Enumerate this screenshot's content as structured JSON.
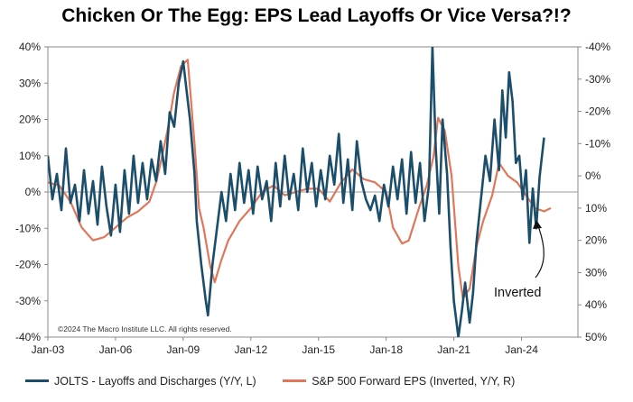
{
  "title": "Chicken Or The Egg: EPS Lead Layoffs Or Vice Versa?!?",
  "copyright": "©2024 The Macro Institute LLC. All rights reserved.",
  "annotation": "Inverted",
  "colors": {
    "series1": "#1b4e6b",
    "series2": "#e0775a",
    "grid": "#9a9a9a",
    "axis": "#888888"
  },
  "chart_data": {
    "type": "line",
    "x_tick_labels": [
      "Jan-03",
      "Jan-06",
      "Jan-09",
      "Jan-12",
      "Jan-15",
      "Jan-18",
      "Jan-21",
      "Jan-24"
    ],
    "xlim": [
      2003.0,
      2026.5
    ],
    "y_left": {
      "ticks": [
        "40%",
        "30%",
        "20%",
        "10%",
        "0%",
        "-10%",
        "-20%",
        "-30%",
        "-40%"
      ],
      "ylim": [
        -40,
        40
      ]
    },
    "y_right": {
      "ticks": [
        "-40%",
        "-30%",
        "-20%",
        "-10%",
        "0%",
        "10%",
        "20%",
        "30%",
        "40%",
        "50%"
      ],
      "ylim": [
        50,
        -40
      ],
      "inverted": true
    },
    "series": [
      {
        "name": "JOLTS - Layoffs and Discharges (Y/Y, L)",
        "axis": "left",
        "points": [
          [
            2003.0,
            10
          ],
          [
            2003.2,
            -2
          ],
          [
            2003.4,
            5
          ],
          [
            2003.6,
            -5
          ],
          [
            2003.8,
            12
          ],
          [
            2004.0,
            -3
          ],
          [
            2004.2,
            2
          ],
          [
            2004.4,
            -8
          ],
          [
            2004.6,
            6
          ],
          [
            2004.8,
            -6
          ],
          [
            2005.0,
            3
          ],
          [
            2005.2,
            -9
          ],
          [
            2005.4,
            7
          ],
          [
            2005.6,
            -4
          ],
          [
            2005.8,
            -12
          ],
          [
            2006.0,
            2
          ],
          [
            2006.2,
            -11
          ],
          [
            2006.4,
            6
          ],
          [
            2006.6,
            -6
          ],
          [
            2006.8,
            10
          ],
          [
            2007.0,
            -3
          ],
          [
            2007.2,
            8
          ],
          [
            2007.4,
            -2
          ],
          [
            2007.6,
            9
          ],
          [
            2007.8,
            3
          ],
          [
            2008.0,
            14
          ],
          [
            2008.2,
            5
          ],
          [
            2008.4,
            22
          ],
          [
            2008.6,
            18
          ],
          [
            2008.8,
            30
          ],
          [
            2009.0,
            36
          ],
          [
            2009.15,
            28
          ],
          [
            2009.3,
            20
          ],
          [
            2009.5,
            5
          ],
          [
            2009.6,
            -8
          ],
          [
            2009.8,
            -20
          ],
          [
            2010.0,
            -30
          ],
          [
            2010.1,
            -34
          ],
          [
            2010.3,
            -20
          ],
          [
            2010.5,
            -10
          ],
          [
            2010.7,
            0
          ],
          [
            2010.9,
            -8
          ],
          [
            2011.1,
            5
          ],
          [
            2011.3,
            -5
          ],
          [
            2011.5,
            8
          ],
          [
            2011.7,
            -3
          ],
          [
            2011.9,
            6
          ],
          [
            2012.1,
            -6
          ],
          [
            2012.3,
            7
          ],
          [
            2012.5,
            -2
          ],
          [
            2012.7,
            3
          ],
          [
            2012.9,
            -8
          ],
          [
            2013.1,
            8
          ],
          [
            2013.3,
            -4
          ],
          [
            2013.5,
            10
          ],
          [
            2013.7,
            -2
          ],
          [
            2013.9,
            5
          ],
          [
            2014.1,
            -5
          ],
          [
            2014.3,
            12
          ],
          [
            2014.5,
            0
          ],
          [
            2014.7,
            8
          ],
          [
            2014.9,
            -4
          ],
          [
            2015.1,
            6
          ],
          [
            2015.3,
            -2
          ],
          [
            2015.5,
            10
          ],
          [
            2015.7,
            2
          ],
          [
            2015.9,
            16
          ],
          [
            2016.1,
            -3
          ],
          [
            2016.3,
            9
          ],
          [
            2016.5,
            -5
          ],
          [
            2016.7,
            14
          ],
          [
            2016.9,
            3
          ],
          [
            2017.1,
            -2
          ],
          [
            2017.3,
            -5
          ],
          [
            2017.5,
            -1
          ],
          [
            2017.7,
            -8
          ],
          [
            2017.9,
            2
          ],
          [
            2018.1,
            -4
          ],
          [
            2018.3,
            7
          ],
          [
            2018.5,
            -2
          ],
          [
            2018.7,
            9
          ],
          [
            2018.9,
            -6
          ],
          [
            2019.1,
            11
          ],
          [
            2019.3,
            -3
          ],
          [
            2019.5,
            8
          ],
          [
            2019.7,
            -8
          ],
          [
            2019.9,
            2
          ],
          [
            2020.05,
            40
          ],
          [
            2020.2,
            12
          ],
          [
            2020.35,
            -6
          ],
          [
            2020.5,
            20
          ],
          [
            2020.7,
            5
          ],
          [
            2020.85,
            -15
          ],
          [
            2021.0,
            -30
          ],
          [
            2021.2,
            -40
          ],
          [
            2021.35,
            -33
          ],
          [
            2021.5,
            -25
          ],
          [
            2021.7,
            -36
          ],
          [
            2021.85,
            -28
          ],
          [
            2022.0,
            -14
          ],
          [
            2022.2,
            -2
          ],
          [
            2022.4,
            10
          ],
          [
            2022.6,
            3
          ],
          [
            2022.8,
            20
          ],
          [
            2023.0,
            6
          ],
          [
            2023.15,
            28
          ],
          [
            2023.3,
            15
          ],
          [
            2023.45,
            33
          ],
          [
            2023.6,
            25
          ],
          [
            2023.75,
            8
          ],
          [
            2023.9,
            10
          ],
          [
            2024.05,
            -2
          ],
          [
            2024.2,
            6
          ],
          [
            2024.35,
            -14
          ],
          [
            2024.5,
            1
          ],
          [
            2024.65,
            -10
          ],
          [
            2024.8,
            4
          ],
          [
            2025.0,
            15
          ]
        ]
      },
      {
        "name": "S&P 500 Forward EPS (Inverted, Y/Y, R)",
        "axis": "right",
        "points": [
          [
            2003.0,
            2
          ],
          [
            2003.5,
            3
          ],
          [
            2004.0,
            8
          ],
          [
            2004.5,
            16
          ],
          [
            2005.0,
            20
          ],
          [
            2005.5,
            19
          ],
          [
            2006.0,
            16
          ],
          [
            2006.5,
            13
          ],
          [
            2007.0,
            11
          ],
          [
            2007.5,
            8
          ],
          [
            2007.8,
            2
          ],
          [
            2008.0,
            -4
          ],
          [
            2008.3,
            -14
          ],
          [
            2008.6,
            -26
          ],
          [
            2008.9,
            -34
          ],
          [
            2009.2,
            -36
          ],
          [
            2009.5,
            -10
          ],
          [
            2009.7,
            10
          ],
          [
            2009.9,
            16
          ],
          [
            2010.2,
            28
          ],
          [
            2010.4,
            33
          ],
          [
            2010.7,
            26
          ],
          [
            2011.0,
            20
          ],
          [
            2011.5,
            14
          ],
          [
            2012.0,
            10
          ],
          [
            2012.5,
            5
          ],
          [
            2013.0,
            3
          ],
          [
            2013.5,
            6
          ],
          [
            2014.0,
            5
          ],
          [
            2014.5,
            4
          ],
          [
            2015.0,
            4
          ],
          [
            2015.5,
            8
          ],
          [
            2016.0,
            2
          ],
          [
            2016.5,
            -2
          ],
          [
            2017.0,
            1
          ],
          [
            2017.5,
            2
          ],
          [
            2018.0,
            5
          ],
          [
            2018.3,
            16
          ],
          [
            2018.7,
            21
          ],
          [
            2019.0,
            20
          ],
          [
            2019.5,
            9
          ],
          [
            2019.8,
            3
          ],
          [
            2020.1,
            -6
          ],
          [
            2020.3,
            -18
          ],
          [
            2020.6,
            -14
          ],
          [
            2020.9,
            0
          ],
          [
            2021.2,
            28
          ],
          [
            2021.4,
            38
          ],
          [
            2021.7,
            35
          ],
          [
            2022.0,
            22
          ],
          [
            2022.3,
            14
          ],
          [
            2022.7,
            6
          ],
          [
            2023.0,
            -4
          ],
          [
            2023.4,
            0
          ],
          [
            2023.8,
            2
          ],
          [
            2024.2,
            6
          ],
          [
            2024.6,
            10
          ],
          [
            2025.0,
            11
          ],
          [
            2025.3,
            10
          ]
        ]
      }
    ]
  }
}
